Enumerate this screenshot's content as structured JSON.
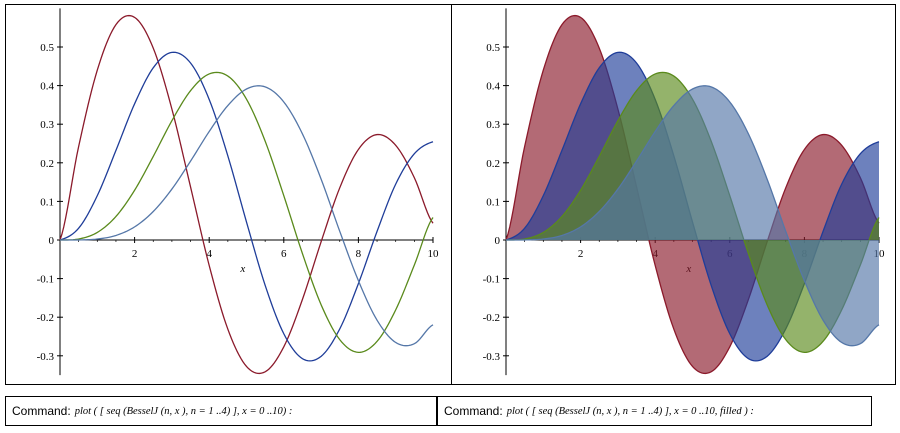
{
  "chart_data": [
    {
      "type": "line",
      "title": "",
      "xlabel": "x",
      "ylabel": "",
      "xlim": [
        0,
        10
      ],
      "ylim": [
        -0.35,
        0.6
      ],
      "x_ticks": [
        "2",
        "4",
        "6",
        "8",
        "10"
      ],
      "y_ticks": [
        "0.5",
        "0.4",
        "0.3",
        "0.2",
        "0.1",
        "0",
        "-0.1",
        "-0.2",
        "-0.3"
      ],
      "filled": false,
      "series": [
        {
          "color": "#8b1a2b",
          "x": [
            0,
            0.5,
            1,
            1.5,
            2,
            2.5,
            3,
            3.5,
            4,
            4.5,
            5,
            5.5,
            6,
            6.5,
            7,
            7.5,
            8,
            8.5,
            9,
            9.5,
            10
          ],
          "y": [
            0,
            0.2423,
            0.4401,
            0.5579,
            0.5767,
            0.4971,
            0.3391,
            0.1374,
            -0.066,
            -0.2311,
            -0.3276,
            -0.3414,
            -0.2767,
            -0.1538,
            -0.0047,
            0.1352,
            0.2346,
            0.2731,
            0.2453,
            0.1613,
            0.0435
          ]
        },
        {
          "color": "#1f3d99",
          "x": [
            0,
            0.5,
            1,
            1.5,
            2,
            2.5,
            3,
            3.5,
            4,
            4.5,
            5,
            5.5,
            6,
            6.5,
            7,
            7.5,
            8,
            8.5,
            9,
            9.5,
            10
          ],
          "y": [
            0,
            0.0306,
            0.1149,
            0.2321,
            0.3528,
            0.4461,
            0.4861,
            0.4586,
            0.3641,
            0.2178,
            0.0466,
            -0.1173,
            -0.2429,
            -0.3074,
            -0.3014,
            -0.2303,
            -0.113,
            0.0223,
            0.1448,
            0.2235,
            0.2546
          ]
        },
        {
          "color": "#5a8a1c",
          "x": [
            0,
            0.5,
            1,
            1.5,
            2,
            2.5,
            3,
            3.5,
            4,
            4.5,
            5,
            5.5,
            6,
            6.5,
            7,
            7.5,
            8,
            8.5,
            9,
            9.5,
            10
          ],
          "y": [
            0,
            0.0026,
            0.0196,
            0.061,
            0.1289,
            0.2166,
            0.3091,
            0.3868,
            0.4302,
            0.4247,
            0.3648,
            0.2561,
            0.1148,
            -0.0353,
            -0.1676,
            -0.2581,
            -0.2911,
            -0.2626,
            -0.181,
            -0.0648,
            0.0584
          ]
        },
        {
          "color": "#5577a8",
          "x": [
            0,
            0.5,
            1,
            1.5,
            2,
            2.5,
            3,
            3.5,
            4,
            4.5,
            5,
            5.5,
            6,
            6.5,
            7,
            7.5,
            8,
            8.5,
            9,
            9.5,
            10
          ],
          "y": [
            0,
            0.0002,
            0.0025,
            0.0118,
            0.034,
            0.0738,
            0.132,
            0.2044,
            0.2811,
            0.3484,
            0.3912,
            0.3967,
            0.3576,
            0.2748,
            0.1578,
            0.0225,
            -0.1054,
            -0.2077,
            -0.2655,
            -0.2687,
            -0.2196
          ]
        }
      ]
    },
    {
      "type": "area",
      "title": "",
      "xlabel": "x",
      "ylabel": "",
      "xlim": [
        0,
        10
      ],
      "ylim": [
        -0.35,
        0.6
      ],
      "x_ticks": [
        "2",
        "4",
        "6",
        "8",
        "10"
      ],
      "y_ticks": [
        "0.5",
        "0.4",
        "0.3",
        "0.2",
        "0.1",
        "0",
        "-0.1",
        "-0.2",
        "-0.3"
      ],
      "filled": true,
      "series_ref": "same as chart 1"
    }
  ],
  "commands": [
    {
      "label": "Command:",
      "text": "plot ( [ seq (BesselJ (n, x ), n = 1 ..4) ], x = 0 ..10) :"
    },
    {
      "label": "Command:",
      "text": "plot ( [ seq (BesselJ (n, x ), n = 1 ..4) ], x = 0 ..10, filled ) :"
    }
  ]
}
